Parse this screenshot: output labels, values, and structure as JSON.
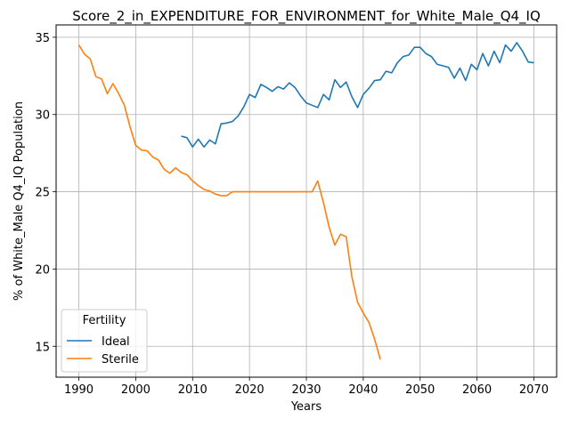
{
  "chart_data": {
    "type": "line",
    "title": "Score_2_in_EXPENDITURE_FOR_ENVIRONMENT_for_White_Male_Q4_IQ",
    "xlabel": "Years",
    "ylabel": "% of White_Male Q4_IQ Population",
    "xlim": [
      1986,
      2074
    ],
    "ylim": [
      13.0,
      35.8
    ],
    "xticks": [
      1990,
      2000,
      2010,
      2020,
      2030,
      2040,
      2050,
      2060,
      2070
    ],
    "yticks": [
      15,
      20,
      25,
      30,
      35
    ],
    "grid": true,
    "legend": {
      "title": "Fertility",
      "position": "lower-left"
    },
    "series": [
      {
        "name": "Ideal",
        "color": "#1f77b4",
        "x": [
          2008,
          2009,
          2010,
          2011,
          2012,
          2013,
          2014,
          2015,
          2016,
          2017,
          2018,
          2019,
          2020,
          2021,
          2022,
          2023,
          2024,
          2025,
          2026,
          2027,
          2028,
          2029,
          2030,
          2031,
          2032,
          2033,
          2034,
          2035,
          2036,
          2037,
          2038,
          2039,
          2040,
          2041,
          2042,
          2043,
          2044,
          2045,
          2046,
          2047,
          2048,
          2049,
          2050,
          2051,
          2052,
          2053,
          2054,
          2055,
          2056,
          2057,
          2058,
          2059,
          2060,
          2061,
          2062,
          2063,
          2064,
          2065,
          2066,
          2067,
          2068,
          2069,
          2070
        ],
        "y": [
          28.6,
          28.5,
          27.9,
          28.4,
          27.9,
          28.35,
          28.1,
          29.4,
          29.45,
          29.55,
          29.9,
          30.5,
          31.3,
          31.1,
          31.95,
          31.75,
          31.5,
          31.8,
          31.65,
          32.05,
          31.75,
          31.2,
          30.75,
          30.6,
          30.45,
          31.3,
          30.95,
          32.25,
          31.75,
          32.1,
          31.15,
          30.45,
          31.3,
          31.7,
          32.2,
          32.25,
          32.8,
          32.7,
          33.35,
          33.75,
          33.85,
          34.35,
          34.35,
          33.95,
          33.75,
          33.25,
          33.15,
          33.05,
          32.35,
          33.0,
          32.2,
          33.25,
          32.9,
          33.95,
          33.15,
          34.1,
          33.35,
          34.5,
          34.1,
          34.65,
          34.1,
          33.4,
          33.35
        ]
      },
      {
        "name": "Sterile",
        "color": "#ff7f0e",
        "x": [
          1990,
          1991,
          1992,
          1993,
          1994,
          1995,
          1996,
          1997,
          1998,
          1999,
          2000,
          2001,
          2002,
          2003,
          2004,
          2005,
          2006,
          2007,
          2008,
          2009,
          2010,
          2011,
          2012,
          2013,
          2014,
          2015,
          2016,
          2017,
          2018,
          2019,
          2020,
          2021,
          2022,
          2023,
          2024,
          2025,
          2026,
          2027,
          2028,
          2029,
          2030,
          2031,
          2032,
          2033,
          2034,
          2035,
          2036,
          2037,
          2038,
          2039,
          2040,
          2041,
          2042,
          2043
        ],
        "y": [
          34.5,
          33.9,
          33.6,
          32.45,
          32.3,
          31.35,
          32.0,
          31.35,
          30.6,
          29.2,
          28.0,
          27.7,
          27.65,
          27.25,
          27.05,
          26.45,
          26.2,
          26.55,
          26.25,
          26.1,
          25.7,
          25.4,
          25.15,
          25.05,
          24.85,
          24.75,
          24.75,
          25.0,
          25.0,
          25.0,
          25.0,
          25.0,
          25.0,
          25.0,
          25.0,
          25.0,
          25.0,
          25.0,
          25.0,
          25.0,
          25.0,
          25.0,
          25.7,
          24.3,
          22.7,
          21.55,
          22.25,
          22.1,
          19.5,
          17.85,
          17.15,
          16.55,
          15.45,
          14.15
        ]
      }
    ]
  }
}
